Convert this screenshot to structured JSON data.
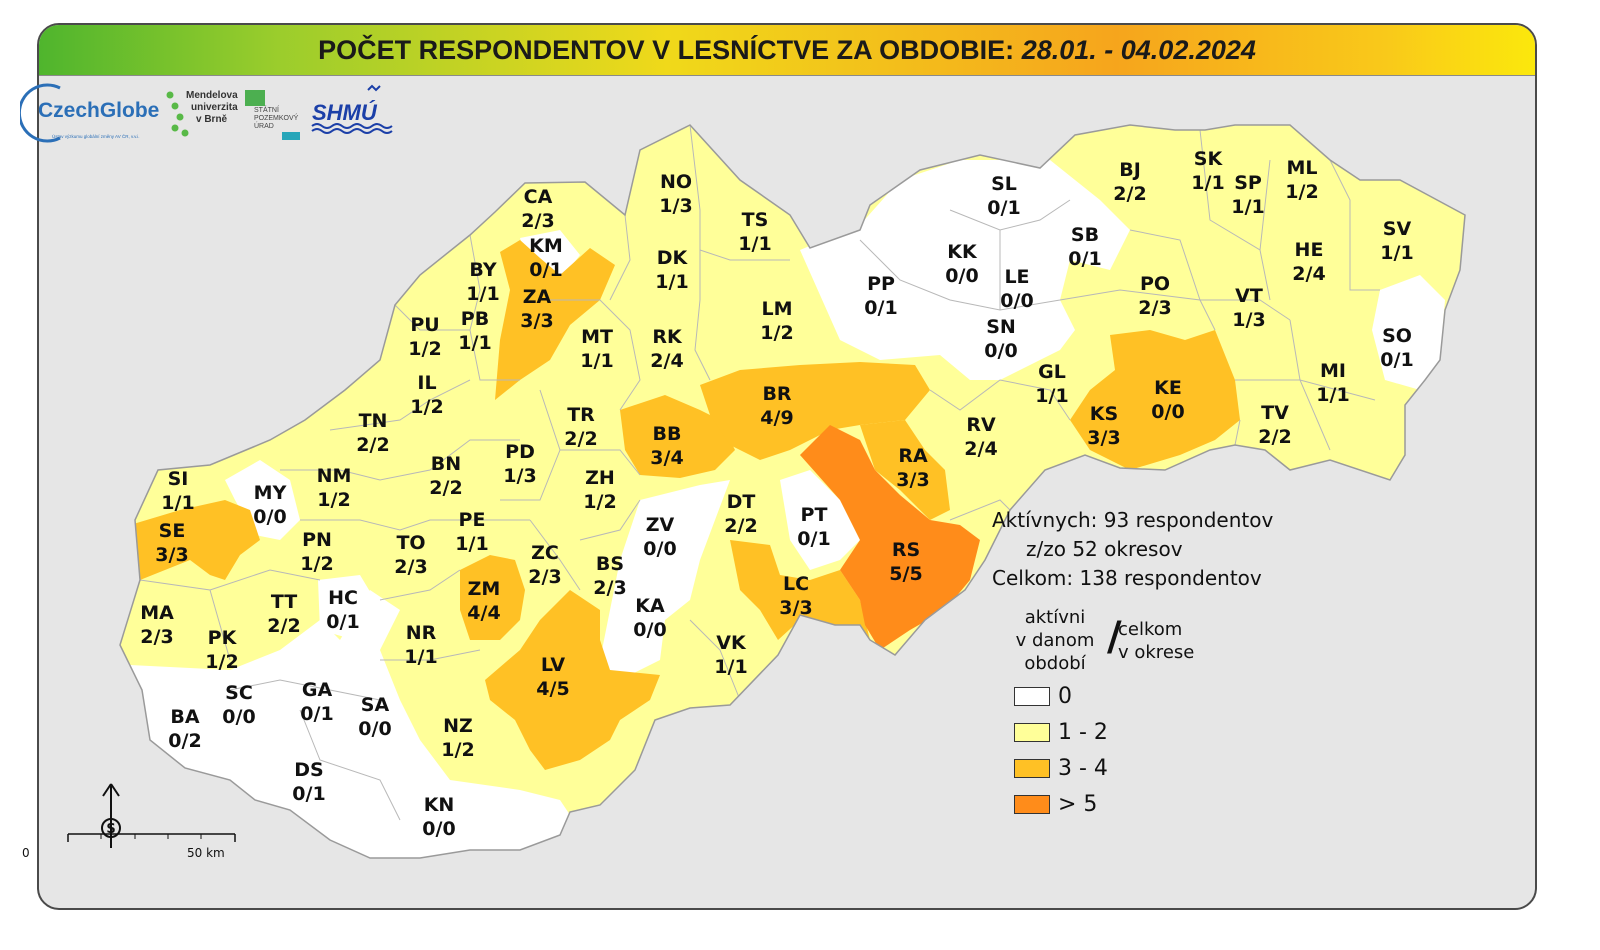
{
  "header": {
    "title_main": "POČET RESPONDENTOV V LESNÍCTVE ZA OBDOBIE:",
    "title_period": "28.01. - 04.02.2024"
  },
  "logos": {
    "czechglobe": "CzechGlobe",
    "czechglobe_sub": "Ústav výzkumu globální změny AV ČR, v.v.i.",
    "mendelu_line1": "Mendelova",
    "mendelu_line2": "univerzita",
    "mendelu_line3": "v Brně",
    "spu_line1": "STÁTNÍ",
    "spu_line2": "POZEMKOVÝ",
    "spu_line3": "ÚRAD",
    "shmu": "SHMÚ"
  },
  "colors": {
    "class_0": "#ffffff",
    "class_1_2": "#ffff99",
    "class_3_4": "#ffc125",
    "class_gt5": "#ff8c1a",
    "border": "#b0b0b0"
  },
  "districts": [
    {
      "code": "CA",
      "value": "2/3",
      "active": 2
    },
    {
      "code": "KM",
      "value": "0/1",
      "active": 0
    },
    {
      "code": "NO",
      "value": "1/3",
      "active": 1
    },
    {
      "code": "TS",
      "value": "1/1",
      "active": 1
    },
    {
      "code": "BY",
      "value": "1/1",
      "active": 1
    },
    {
      "code": "ZA",
      "value": "3/3",
      "active": 3
    },
    {
      "code": "DK",
      "value": "1/1",
      "active": 1
    },
    {
      "code": "PU",
      "value": "1/2",
      "active": 1
    },
    {
      "code": "PB",
      "value": "1/1",
      "active": 1
    },
    {
      "code": "MT",
      "value": "1/1",
      "active": 1
    },
    {
      "code": "RK",
      "value": "2/4",
      "active": 2
    },
    {
      "code": "LM",
      "value": "1/2",
      "active": 1
    },
    {
      "code": "IL",
      "value": "1/2",
      "active": 1
    },
    {
      "code": "TN",
      "value": "2/2",
      "active": 2
    },
    {
      "code": "TR",
      "value": "2/2",
      "active": 2
    },
    {
      "code": "BB",
      "value": "3/4",
      "active": 3
    },
    {
      "code": "BR",
      "value": "4/9",
      "active": 4
    },
    {
      "code": "BN",
      "value": "2/2",
      "active": 2
    },
    {
      "code": "PD",
      "value": "1/3",
      "active": 1
    },
    {
      "code": "NM",
      "value": "1/2",
      "active": 1
    },
    {
      "code": "SI",
      "value": "1/1",
      "active": 1
    },
    {
      "code": "MY",
      "value": "0/0",
      "active": 0
    },
    {
      "code": "SE",
      "value": "3/3",
      "active": 3
    },
    {
      "code": "ZH",
      "value": "1/2",
      "active": 1
    },
    {
      "code": "PE",
      "value": "1/1",
      "active": 1
    },
    {
      "code": "PN",
      "value": "1/2",
      "active": 1
    },
    {
      "code": "TO",
      "value": "2/3",
      "active": 2
    },
    {
      "code": "ZV",
      "value": "0/0",
      "active": 0
    },
    {
      "code": "DT",
      "value": "2/2",
      "active": 2
    },
    {
      "code": "ZC",
      "value": "2/3",
      "active": 2
    },
    {
      "code": "BS",
      "value": "2/3",
      "active": 2
    },
    {
      "code": "MA",
      "value": "2/3",
      "active": 2
    },
    {
      "code": "TT",
      "value": "2/2",
      "active": 2
    },
    {
      "code": "HC",
      "value": "0/1",
      "active": 0
    },
    {
      "code": "ZM",
      "value": "4/4",
      "active": 4
    },
    {
      "code": "KA",
      "value": "0/0",
      "active": 0
    },
    {
      "code": "PK",
      "value": "1/2",
      "active": 1
    },
    {
      "code": "NR",
      "value": "1/1",
      "active": 1
    },
    {
      "code": "LV",
      "value": "4/5",
      "active": 4
    },
    {
      "code": "VK",
      "value": "1/1",
      "active": 1
    },
    {
      "code": "LC",
      "value": "3/3",
      "active": 3
    },
    {
      "code": "PT",
      "value": "0/1",
      "active": 0
    },
    {
      "code": "RS",
      "value": "5/5",
      "active": 5
    },
    {
      "code": "RA",
      "value": "3/3",
      "active": 3
    },
    {
      "code": "BA",
      "value": "0/2",
      "active": 0
    },
    {
      "code": "SC",
      "value": "0/0",
      "active": 0
    },
    {
      "code": "GA",
      "value": "0/1",
      "active": 0
    },
    {
      "code": "SA",
      "value": "0/0",
      "active": 0
    },
    {
      "code": "NZ",
      "value": "1/2",
      "active": 1
    },
    {
      "code": "DS",
      "value": "0/1",
      "active": 0
    },
    {
      "code": "KN",
      "value": "0/0",
      "active": 0
    },
    {
      "code": "PP",
      "value": "0/1",
      "active": 0
    },
    {
      "code": "SL",
      "value": "0/1",
      "active": 0
    },
    {
      "code": "KK",
      "value": "0/0",
      "active": 0
    },
    {
      "code": "LE",
      "value": "0/0",
      "active": 0
    },
    {
      "code": "SB",
      "value": "0/1",
      "active": 0
    },
    {
      "code": "SN",
      "value": "0/0",
      "active": 0
    },
    {
      "code": "BJ",
      "value": "2/2",
      "active": 2
    },
    {
      "code": "SK",
      "value": "1/1",
      "active": 1
    },
    {
      "code": "SP",
      "value": "1/1",
      "active": 1
    },
    {
      "code": "ML",
      "value": "1/2",
      "active": 1
    },
    {
      "code": "PO",
      "value": "2/3",
      "active": 2
    },
    {
      "code": "HE",
      "value": "2/4",
      "active": 2
    },
    {
      "code": "SV",
      "value": "1/1",
      "active": 1
    },
    {
      "code": "VT",
      "value": "1/3",
      "active": 1
    },
    {
      "code": "SO",
      "value": "0/1",
      "active": 0
    },
    {
      "code": "GL",
      "value": "1/1",
      "active": 1
    },
    {
      "code": "KS",
      "value": "3/3",
      "active": 3
    },
    {
      "code": "KE",
      "value": "0/0",
      "active": 0
    },
    {
      "code": "MI",
      "value": "1/1",
      "active": 1
    },
    {
      "code": "RV",
      "value": "2/4",
      "active": 2
    },
    {
      "code": "TV",
      "value": "2/2",
      "active": 2
    }
  ],
  "stats": {
    "active_line": "Aktívnych: 93 respondentov",
    "districts_line": "z/zo 52 okresov",
    "total_line": "Celkom: 138 respondentov"
  },
  "legend": {
    "active_l1": "aktívni",
    "active_l2": "v danom",
    "active_l3": "období",
    "slash": "/",
    "total_l1": "celkom",
    "total_l2": "v okrese",
    "items": [
      {
        "label": "0",
        "color": "#ffffff"
      },
      {
        "label": "1 - 2",
        "color": "#ffff99"
      },
      {
        "label": "3 - 4",
        "color": "#ffc125"
      },
      {
        "label": "> 5",
        "color": "#ff8c1a"
      }
    ]
  },
  "scale": {
    "zero": "0",
    "fifty": "50 km"
  }
}
